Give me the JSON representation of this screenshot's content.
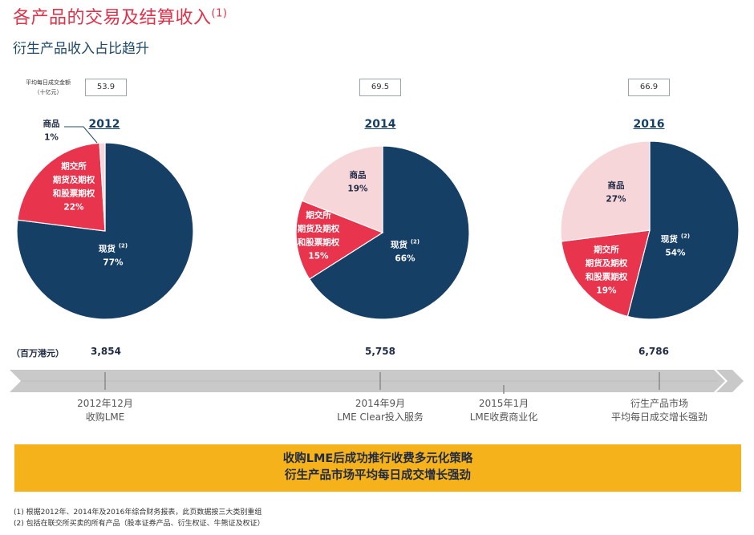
{
  "header": {
    "title": "各产品的交易及结算收入",
    "title_sup": "(1)",
    "subtitle": "衍生产品收入占比趋升"
  },
  "adtv_label_line1": "平均每日成交金额",
  "adtv_label_line2": "（十亿元）",
  "revenue_unit": "（百万港元）",
  "colors": {
    "spot": "#163f66",
    "exchange": "#e8344d",
    "commodity": "#f7d6da",
    "banner": "#f5b21a",
    "title": "#e0314a"
  },
  "chart_data": [
    {
      "type": "pie",
      "title": "2012",
      "adtv": "53.9",
      "total_revenue": "3,854",
      "slices": [
        {
          "name": "现货",
          "label_sup": "(2)",
          "value": 77,
          "label": "77%"
        },
        {
          "name": "期交所期货及期权和股票期权",
          "label_lines": [
            "期交所",
            "期货及期权",
            "和股票期权"
          ],
          "value": 22,
          "label": "22%"
        },
        {
          "name": "商品",
          "value": 1,
          "label": "1%"
        }
      ]
    },
    {
      "type": "pie",
      "title": "2014",
      "adtv": "69.5",
      "total_revenue": "5,758",
      "slices": [
        {
          "name": "现货",
          "label_sup": "(2)",
          "value": 66,
          "label": "66%"
        },
        {
          "name": "期交所期货及期权和股票期权",
          "label_lines": [
            "期交所",
            "期货及期权",
            "和股票期权"
          ],
          "value": 15,
          "label": "15%"
        },
        {
          "name": "商品",
          "value": 19,
          "label": "19%"
        }
      ]
    },
    {
      "type": "pie",
      "title": "2016",
      "adtv": "66.9",
      "total_revenue": "6,786",
      "slices": [
        {
          "name": "现货",
          "label_sup": "(2)",
          "value": 54,
          "label": "54%"
        },
        {
          "name": "期交所期货及期权和股票期权",
          "label_lines": [
            "期交所",
            "期货及期权",
            "和股票期权"
          ],
          "value": 19,
          "label": "19%"
        },
        {
          "name": "商品",
          "value": 27,
          "label": "27%"
        }
      ]
    }
  ],
  "timeline": [
    {
      "line1": "2012年12月",
      "line2": "收购LME"
    },
    {
      "line1": "2014年9月",
      "line2": "LME Clear投入服务"
    },
    {
      "line1": "2015年1月",
      "line2": "LME收费商业化"
    },
    {
      "line1": "衍生产品市场",
      "line2": "平均每日成交增长强劲"
    }
  ],
  "banner": {
    "line1": "收购LME后成功推行收费多元化策略",
    "line2": "衍生产品市场平均每日成交增长强劲"
  },
  "footnotes": [
    "(1) 根据2012年、2014年及2016年综合财务报表，此页数据按三大类别重组",
    "(2) 包括在联交所买卖的所有产品（股本证券产品、衍生权证、牛熊证及权证）"
  ]
}
